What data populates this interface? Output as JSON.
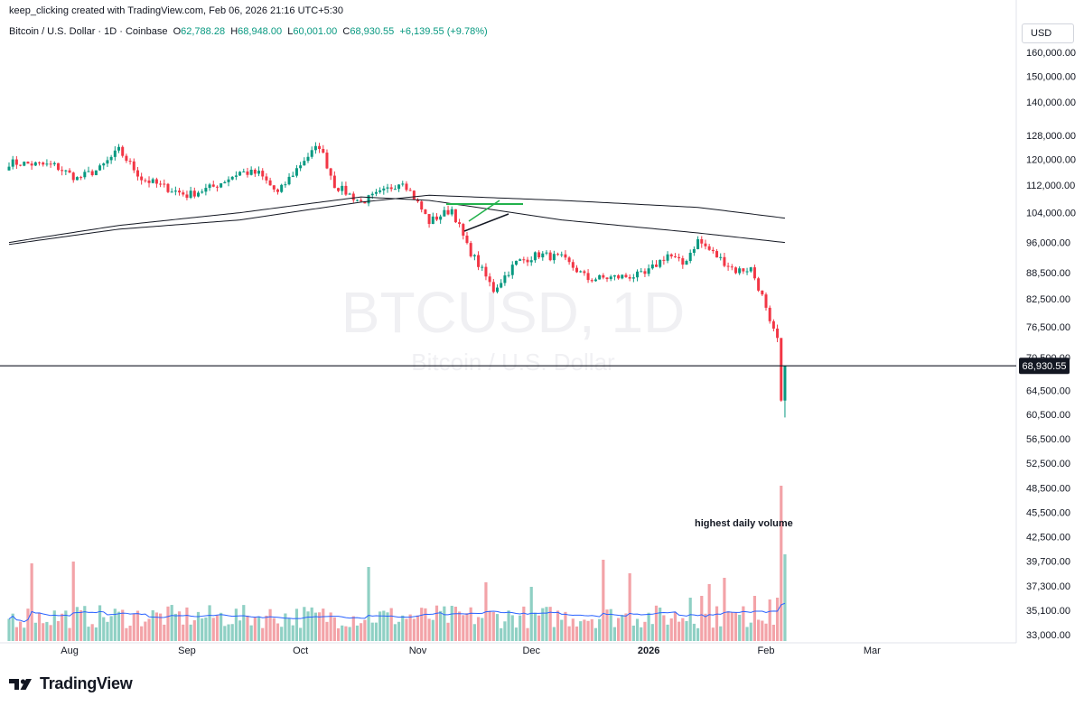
{
  "header": {
    "caption": "keep_clicking created with TradingView.com, Feb 06, 2026 21:16 UTC+5:30",
    "symbol": "Bitcoin / U.S. Dollar · 1D · Coinbase",
    "ohlc": {
      "open_label": "O",
      "open": "62,788.28",
      "high_label": "H",
      "high": "68,948.00",
      "low_label": "L",
      "low": "60,001.00",
      "close_label": "C",
      "close": "68,930.55",
      "change": "+6,139.55 (+9.78%)"
    },
    "currency": "USD"
  },
  "watermark": {
    "ticker": "BTCUSD, 1D",
    "name": "Bitcoin / U.S. Dollar"
  },
  "brand": {
    "name": "TradingView"
  },
  "colors": {
    "up": "#089981",
    "down": "#f23645",
    "vol_up": "#8fd0c4",
    "vol_down": "#f3a3a8",
    "volume_ma": "#2962ff"
  },
  "chart_data": {
    "type": "candlestick",
    "x_ticks": [
      "Aug",
      "Sep",
      "Oct",
      "Nov",
      "Dec",
      "2026",
      "Feb",
      "Mar"
    ],
    "y_ticks": [
      "160,000.00",
      "150,000.00",
      "140,000.00",
      "128,000.00",
      "120,000.00",
      "112,000.00",
      "104,000.00",
      "96,000.00",
      "88,500.00",
      "82,500.00",
      "76,500.00",
      "70,500.00",
      "64,500.00",
      "60,500.00",
      "56,500.00",
      "52,500.00",
      "48,500.00",
      "45,500.00",
      "42,500.00",
      "39,700.00",
      "37,300.00",
      "35,100.00",
      "33,000.00"
    ],
    "y_scale": "log",
    "last_price": 68930.55,
    "last_price_label": "68,930.55",
    "price_path": [
      {
        "x": "Jul 16",
        "price": 119000
      },
      {
        "x": "Jul 22",
        "price": 118500
      },
      {
        "x": "Jul 28",
        "price": 118000
      },
      {
        "x": "Aug 03",
        "price": 114000
      },
      {
        "x": "Aug 09",
        "price": 117000
      },
      {
        "x": "Aug 14",
        "price": 123000
      },
      {
        "x": "Aug 20",
        "price": 114000
      },
      {
        "x": "Aug 27",
        "price": 111000
      },
      {
        "x": "Sep 01",
        "price": 109000
      },
      {
        "x": "Sep 08",
        "price": 111500
      },
      {
        "x": "Sep 15",
        "price": 116000
      },
      {
        "x": "Sep 20",
        "price": 115500
      },
      {
        "x": "Sep 25",
        "price": 109500
      },
      {
        "x": "Oct 02",
        "price": 120000
      },
      {
        "x": "Oct 06",
        "price": 124500
      },
      {
        "x": "Oct 10",
        "price": 112000
      },
      {
        "x": "Oct 17",
        "price": 107000
      },
      {
        "x": "Oct 23",
        "price": 110000
      },
      {
        "x": "Oct 28",
        "price": 113500
      },
      {
        "x": "Nov 04",
        "price": 101500
      },
      {
        "x": "Nov 10",
        "price": 105000
      },
      {
        "x": "Nov 14",
        "price": 95000
      },
      {
        "x": "Nov 21",
        "price": 84500
      },
      {
        "x": "Nov 27",
        "price": 91000
      },
      {
        "x": "Dec 03",
        "price": 93000
      },
      {
        "x": "Dec 09",
        "price": 92000
      },
      {
        "x": "Dec 16",
        "price": 87000
      },
      {
        "x": "Dec 24",
        "price": 87500
      },
      {
        "x": "Dec 31",
        "price": 88000
      },
      {
        "x": "Jan 06",
        "price": 93000
      },
      {
        "x": "Jan 10",
        "price": 90500
      },
      {
        "x": "Jan 14",
        "price": 96500
      },
      {
        "x": "Jan 19",
        "price": 92500
      },
      {
        "x": "Jan 24",
        "price": 89000
      },
      {
        "x": "Jan 28",
        "price": 89500
      },
      {
        "x": "Jan 31",
        "price": 83000
      },
      {
        "x": "Feb 02",
        "price": 77000
      },
      {
        "x": "Feb 04",
        "price": 74000
      },
      {
        "x": "Feb 05",
        "price": 62800
      },
      {
        "x": "Feb 06",
        "price": 68930
      }
    ],
    "moving_averages": [
      {
        "path": [
          {
            "x": "Jul 16",
            "price": 95500
          },
          {
            "x": "Aug 14",
            "price": 99500
          },
          {
            "x": "Sep 15",
            "price": 102000
          },
          {
            "x": "Oct 17",
            "price": 107000
          },
          {
            "x": "Nov 04",
            "price": 109000
          },
          {
            "x": "Dec 09",
            "price": 107500
          },
          {
            "x": "Jan 14",
            "price": 105500
          },
          {
            "x": "Feb 06",
            "price": 102500
          }
        ]
      },
      {
        "path": [
          {
            "x": "Jul 16",
            "price": 96000
          },
          {
            "x": "Aug 14",
            "price": 100500
          },
          {
            "x": "Sep 15",
            "price": 104000
          },
          {
            "x": "Oct 17",
            "price": 108500
          },
          {
            "x": "Nov 04",
            "price": 107500
          },
          {
            "x": "Dec 09",
            "price": 102000
          },
          {
            "x": "Jan 14",
            "price": 98500
          },
          {
            "x": "Feb 06",
            "price": 96000
          }
        ]
      }
    ],
    "volume_annotation": "highest daily volume"
  }
}
